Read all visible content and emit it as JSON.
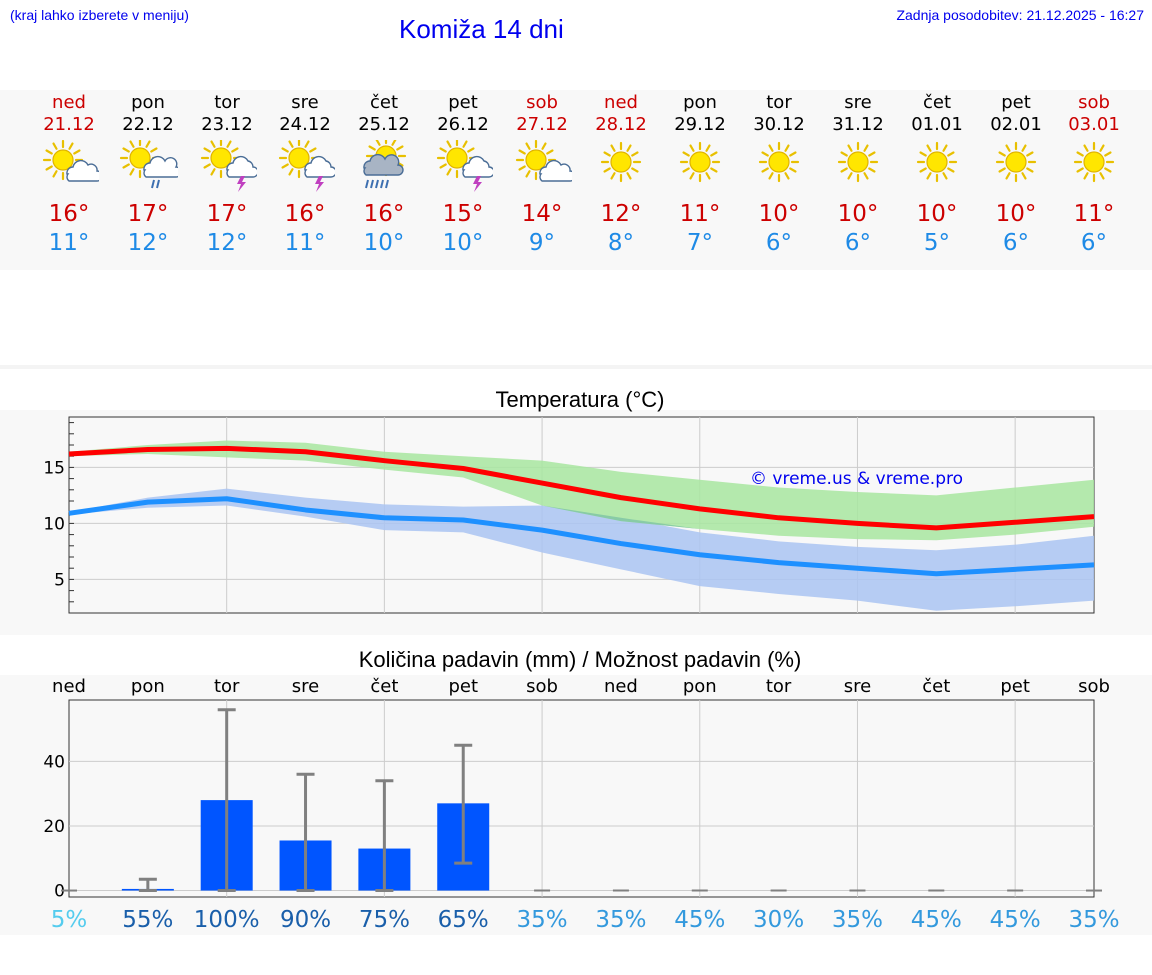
{
  "header": {
    "left_note": "(kraj lahko izberete v meniju)",
    "title": "Komiža 14 dni",
    "updated": "Zadnja posodobitev: 21.12.2025 - 16:27"
  },
  "days": [
    {
      "name": "ned",
      "date": "21.12",
      "weekend": true,
      "icon": "sun-cloud-icon",
      "tmax": "16°",
      "tmin": "11°"
    },
    {
      "name": "pon",
      "date": "22.12",
      "weekend": false,
      "icon": "sun-cloud-rain-icon",
      "tmax": "17°",
      "tmin": "12°"
    },
    {
      "name": "tor",
      "date": "23.12",
      "weekend": false,
      "icon": "sun-thunderstorm-icon",
      "tmax": "17°",
      "tmin": "12°"
    },
    {
      "name": "sre",
      "date": "24.12",
      "weekend": false,
      "icon": "sun-thunderstorm-icon",
      "tmax": "16°",
      "tmin": "11°"
    },
    {
      "name": "čet",
      "date": "25.12",
      "weekend": false,
      "icon": "sun-cloud-heavy-rain-icon",
      "tmax": "16°",
      "tmin": "10°"
    },
    {
      "name": "pet",
      "date": "26.12",
      "weekend": false,
      "icon": "sun-thunderstorm-icon",
      "tmax": "15°",
      "tmin": "10°"
    },
    {
      "name": "sob",
      "date": "27.12",
      "weekend": true,
      "icon": "sun-cloud-icon",
      "tmax": "14°",
      "tmin": "9°"
    },
    {
      "name": "ned",
      "date": "28.12",
      "weekend": true,
      "icon": "sun-icon",
      "tmax": "12°",
      "tmin": "8°"
    },
    {
      "name": "pon",
      "date": "29.12",
      "weekend": false,
      "icon": "sun-icon",
      "tmax": "11°",
      "tmin": "7°"
    },
    {
      "name": "tor",
      "date": "30.12",
      "weekend": false,
      "icon": "sun-icon",
      "tmax": "10°",
      "tmin": "6°"
    },
    {
      "name": "sre",
      "date": "31.12",
      "weekend": false,
      "icon": "sun-icon",
      "tmax": "10°",
      "tmin": "6°"
    },
    {
      "name": "čet",
      "date": "01.01",
      "weekend": false,
      "icon": "sun-icon",
      "tmax": "10°",
      "tmin": "5°"
    },
    {
      "name": "pet",
      "date": "02.01",
      "weekend": false,
      "icon": "sun-icon",
      "tmax": "10°",
      "tmin": "6°"
    },
    {
      "name": "sob",
      "date": "03.01",
      "weekend": true,
      "icon": "sun-icon",
      "tmax": "11°",
      "tmin": "6°"
    }
  ],
  "colors": {
    "max_line": "#ff0000",
    "min_line": "#1e90ff",
    "max_band": "#a8e6a0",
    "min_band": "#aac4f2",
    "overlap_band": "#80c4a4",
    "bar": "#0055ff",
    "whisker": "#808080",
    "weekend_text": "#cc0000",
    "link": "#0000ee"
  },
  "chart_data": [
    {
      "type": "line",
      "title": "Temperatura (°C)",
      "watermark": "© vreme.us & vreme.pro",
      "x_count": 14,
      "ylim": [
        2,
        19.5
      ],
      "yticks": [
        5,
        10,
        15
      ],
      "series": [
        {
          "name": "max",
          "values": [
            16.2,
            16.6,
            16.7,
            16.4,
            15.6,
            14.9,
            13.6,
            12.3,
            11.3,
            10.5,
            10.0,
            9.6,
            10.1,
            10.6
          ]
        },
        {
          "name": "min",
          "values": [
            10.9,
            11.9,
            12.2,
            11.2,
            10.5,
            10.3,
            9.4,
            8.2,
            7.2,
            6.5,
            6.0,
            5.5,
            5.9,
            6.3
          ]
        }
      ],
      "max_band": {
        "low": [
          16.0,
          16.2,
          15.9,
          15.6,
          14.8,
          14.1,
          11.6,
          10.2,
          9.5,
          8.9,
          8.6,
          8.5,
          9.0,
          9.7
        ],
        "high": [
          16.4,
          17.0,
          17.4,
          17.2,
          16.4,
          16.0,
          15.6,
          14.6,
          13.9,
          13.2,
          12.8,
          12.5,
          13.2,
          13.9
        ]
      },
      "min_band": {
        "low": [
          10.8,
          11.4,
          11.6,
          10.6,
          9.4,
          9.2,
          7.4,
          5.9,
          4.4,
          3.7,
          3.1,
          2.2,
          2.6,
          3.1
        ],
        "high": [
          11.0,
          12.3,
          13.1,
          12.3,
          11.7,
          11.5,
          11.6,
          10.5,
          9.2,
          8.4,
          7.9,
          7.6,
          8.1,
          8.9
        ]
      }
    },
    {
      "type": "bar",
      "title": "Količina padavin (mm) / Možnost padavin (%)",
      "categories": [
        "ned",
        "pon",
        "tor",
        "sre",
        "čet",
        "pet",
        "sob",
        "ned",
        "pon",
        "tor",
        "sre",
        "čet",
        "pet",
        "sob"
      ],
      "ylim": [
        -2,
        59
      ],
      "yticks": [
        0,
        20,
        40
      ],
      "values": [
        0,
        0.5,
        28,
        15.5,
        13,
        27,
        0,
        0,
        0,
        0,
        0,
        0,
        0,
        0
      ],
      "error_low": [
        0,
        0,
        0,
        0,
        0,
        8.5,
        0,
        0,
        0,
        0,
        0,
        0,
        0,
        0
      ],
      "error_high": [
        0,
        3.5,
        56,
        36,
        34,
        45,
        0,
        0,
        0,
        0,
        0,
        0,
        0,
        0
      ],
      "probability": [
        "5%",
        "55%",
        "100%",
        "90%",
        "75%",
        "65%",
        "35%",
        "35%",
        "45%",
        "30%",
        "35%",
        "45%",
        "45%",
        "35%"
      ],
      "probability_colors": [
        "#55ccee",
        "#1a5faa",
        "#1a5faa",
        "#1a5faa",
        "#1a5faa",
        "#1a5faa",
        "#3399dd",
        "#3399dd",
        "#3399dd",
        "#3399dd",
        "#3399dd",
        "#3399dd",
        "#3399dd",
        "#3399dd"
      ]
    }
  ]
}
